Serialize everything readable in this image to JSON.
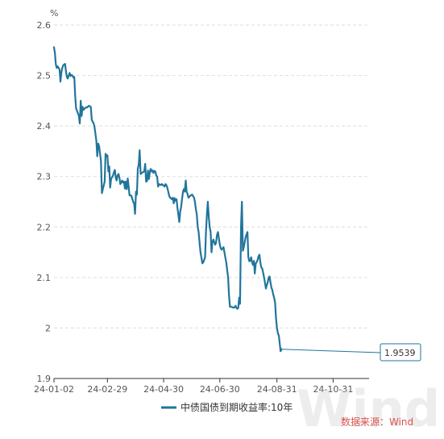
{
  "chart_data": {
    "type": "line",
    "unit_label": "%",
    "ylim": [
      1.9,
      2.6
    ],
    "yticks": [
      "2.6",
      "2.5",
      "2.4",
      "2.3",
      "2.2",
      "2.1",
      "2",
      "1.9"
    ],
    "yticks_values": [
      2.6,
      2.5,
      2.4,
      2.3,
      2.2,
      2.1,
      2.0,
      1.9
    ],
    "xticks": [
      {
        "label": "24-01-02",
        "day": 0
      },
      {
        "label": "24-02-29",
        "day": 58
      },
      {
        "label": "24-04-30",
        "day": 119
      },
      {
        "label": "24-06-30",
        "day": 180
      },
      {
        "label": "24-08-31",
        "day": 242
      },
      {
        "label": "24-10-31",
        "day": 303
      }
    ],
    "x_last_day": 342,
    "grid": "horizontal-dashed",
    "legend_position": "bottom",
    "end_label": "1.9539",
    "series": [
      {
        "name": "中债国债到期收益率:10年",
        "color": "#21759b",
        "points": [
          [
            0,
            2.556
          ],
          [
            1,
            2.545
          ],
          [
            2,
            2.522
          ],
          [
            3,
            2.515
          ],
          [
            4,
            2.518
          ],
          [
            6,
            2.512
          ],
          [
            7,
            2.488
          ],
          [
            8,
            2.505
          ],
          [
            9,
            2.515
          ],
          [
            10,
            2.52
          ],
          [
            11,
            2.522
          ],
          [
            12,
            2.523
          ],
          [
            13,
            2.508
          ],
          [
            14,
            2.497
          ],
          [
            15,
            2.494
          ],
          [
            17,
            2.505
          ],
          [
            18,
            2.499
          ],
          [
            19,
            2.501
          ],
          [
            20,
            2.5
          ],
          [
            21,
            2.496
          ],
          [
            22,
            2.497
          ],
          [
            23,
            2.46
          ],
          [
            24,
            2.435
          ],
          [
            25,
            2.43
          ],
          [
            26,
            2.425
          ],
          [
            27,
            2.42
          ],
          [
            28,
            2.405
          ],
          [
            29,
            2.45
          ],
          [
            30,
            2.42
          ],
          [
            31,
            2.438
          ],
          [
            32,
            2.432
          ],
          [
            33,
            2.434
          ],
          [
            34,
            2.436
          ],
          [
            36,
            2.437
          ],
          [
            38,
            2.44
          ],
          [
            40,
            2.438
          ],
          [
            41,
            2.412
          ],
          [
            43,
            2.405
          ],
          [
            44,
            2.398
          ],
          [
            45,
            2.385
          ],
          [
            46,
            2.37
          ],
          [
            47,
            2.34
          ],
          [
            48,
            2.365
          ],
          [
            49,
            2.36
          ],
          [
            50,
            2.345
          ],
          [
            51,
            2.33
          ],
          [
            52,
            2.267
          ],
          [
            53,
            2.275
          ],
          [
            55,
            2.29
          ],
          [
            56,
            2.345
          ],
          [
            57,
            2.34
          ],
          [
            58,
            2.342
          ],
          [
            59,
            2.31
          ],
          [
            60,
            2.32
          ],
          [
            61,
            2.278
          ],
          [
            62,
            2.296
          ],
          [
            63,
            2.298
          ],
          [
            64,
            2.302
          ],
          [
            65,
            2.308
          ],
          [
            66,
            2.313
          ],
          [
            67,
            2.298
          ],
          [
            68,
            2.292
          ],
          [
            69,
            2.302
          ],
          [
            70,
            2.305
          ],
          [
            71,
            2.298
          ],
          [
            72,
            2.285
          ],
          [
            73,
            2.288
          ],
          [
            74,
            2.292
          ],
          [
            75,
            2.288
          ],
          [
            76,
            2.29
          ],
          [
            77,
            2.276
          ],
          [
            78,
            2.29
          ],
          [
            79,
            2.275
          ],
          [
            80,
            2.296
          ],
          [
            81,
            2.281
          ],
          [
            82,
            2.263
          ],
          [
            84,
            2.262
          ],
          [
            86,
            2.25
          ],
          [
            87,
            2.246
          ],
          [
            88,
            2.226
          ],
          [
            89,
            2.27
          ],
          [
            90,
            2.264
          ],
          [
            91,
            2.315
          ],
          [
            92,
            2.324
          ],
          [
            93,
            2.352
          ],
          [
            94,
            2.305
          ],
          [
            96,
            2.308
          ],
          [
            98,
            2.31
          ],
          [
            99,
            2.325
          ],
          [
            100,
            2.29
          ],
          [
            101,
            2.291
          ],
          [
            102,
            2.312
          ],
          [
            103,
            2.295
          ],
          [
            104,
            2.308
          ],
          [
            105,
            2.315
          ],
          [
            106,
            2.31
          ],
          [
            107,
            2.312
          ],
          [
            108,
            2.307
          ],
          [
            109,
            2.311
          ],
          [
            110,
            2.31
          ],
          [
            111,
            2.302
          ],
          [
            112,
            2.3
          ],
          [
            113,
            2.28
          ],
          [
            114,
            2.285
          ],
          [
            116,
            2.283
          ],
          [
            117,
            2.285
          ],
          [
            119,
            2.282
          ],
          [
            120,
            2.28
          ],
          [
            121,
            2.285
          ],
          [
            122,
            2.283
          ],
          [
            123,
            2.278
          ],
          [
            124,
            2.27
          ],
          [
            125,
            2.262
          ],
          [
            126,
            2.258
          ],
          [
            127,
            2.257
          ],
          [
            128,
            2.255
          ],
          [
            129,
            2.258
          ],
          [
            130,
            2.247
          ],
          [
            131,
            2.257
          ],
          [
            132,
            2.252
          ],
          [
            133,
            2.255
          ],
          [
            134,
            2.238
          ],
          [
            135,
            2.225
          ],
          [
            136,
            2.21
          ],
          [
            137,
            2.23
          ],
          [
            138,
            2.24
          ],
          [
            139,
            2.255
          ],
          [
            140,
            2.27
          ],
          [
            141,
            2.275
          ],
          [
            142,
            2.27
          ],
          [
            143,
            2.292
          ],
          [
            144,
            2.27
          ],
          [
            145,
            2.265
          ],
          [
            146,
            2.258
          ],
          [
            148,
            2.262
          ],
          [
            150,
            2.264
          ],
          [
            152,
            2.258
          ],
          [
            153,
            2.25
          ],
          [
            154,
            2.235
          ],
          [
            155,
            2.225
          ],
          [
            156,
            2.2
          ],
          [
            157,
            2.19
          ],
          [
            158,
            2.17
          ],
          [
            159,
            2.15
          ],
          [
            160,
            2.14
          ],
          [
            161,
            2.128
          ],
          [
            162,
            2.13
          ],
          [
            163,
            2.135
          ],
          [
            164,
            2.14
          ],
          [
            165,
            2.19
          ],
          [
            166,
            2.225
          ],
          [
            167,
            2.25
          ],
          [
            168,
            2.22
          ],
          [
            169,
            2.2
          ],
          [
            170,
            2.19
          ],
          [
            171,
            2.15
          ],
          [
            172,
            2.17
          ],
          [
            173,
            2.175
          ],
          [
            174,
            2.17
          ],
          [
            175,
            2.165
          ],
          [
            176,
            2.17
          ],
          [
            177,
            2.185
          ],
          [
            178,
            2.19
          ],
          [
            180,
            2.165
          ],
          [
            181,
            2.158
          ],
          [
            182,
            2.155
          ],
          [
            184,
            2.16
          ],
          [
            185,
            2.15
          ],
          [
            186,
            2.14
          ],
          [
            187,
            2.13
          ],
          [
            188,
            2.115
          ],
          [
            189,
            2.1
          ],
          [
            190,
            2.065
          ],
          [
            191,
            2.042
          ],
          [
            192,
            2.042
          ],
          [
            194,
            2.041
          ],
          [
            195,
            2.04
          ],
          [
            196,
            2.041
          ],
          [
            197,
            2.044
          ],
          [
            198,
            2.04
          ],
          [
            199,
            2.038
          ],
          [
            200,
            2.04
          ],
          [
            201,
            2.06
          ],
          [
            202,
            2.048
          ],
          [
            203,
            2.2
          ],
          [
            204,
            2.25
          ],
          [
            205,
            2.153
          ],
          [
            206,
            2.16
          ],
          [
            207,
            2.17
          ],
          [
            208,
            2.18
          ],
          [
            209,
            2.185
          ],
          [
            210,
            2.19
          ],
          [
            211,
            2.14
          ],
          [
            212,
            2.132
          ],
          [
            213,
            2.133
          ],
          [
            214,
            2.14
          ],
          [
            215,
            2.13
          ],
          [
            216,
            2.125
          ],
          [
            217,
            2.133
          ],
          [
            218,
            2.108
          ],
          [
            219,
            2.128
          ],
          [
            220,
            2.13
          ],
          [
            221,
            2.135
          ],
          [
            222,
            2.142
          ],
          [
            223,
            2.145
          ],
          [
            224,
            2.13
          ],
          [
            225,
            2.12
          ],
          [
            226,
            2.118
          ],
          [
            227,
            2.11
          ],
          [
            228,
            2.1
          ],
          [
            229,
            2.09
          ],
          [
            230,
            2.078
          ],
          [
            231,
            2.085
          ],
          [
            232,
            2.09
          ],
          [
            233,
            2.1
          ],
          [
            234,
            2.102
          ],
          [
            235,
            2.09
          ],
          [
            236,
            2.08
          ],
          [
            237,
            2.075
          ],
          [
            238,
            2.066
          ],
          [
            239,
            2.06
          ],
          [
            240,
            2.05
          ],
          [
            241,
            2.02
          ],
          [
            242,
            2.0
          ],
          [
            243,
            1.99
          ],
          [
            244,
            1.985
          ],
          [
            245,
            1.97
          ],
          [
            246,
            1.954
          ],
          [
            247,
            1.958
          ]
        ]
      }
    ],
    "watermark": "Wind",
    "source": "数据来源：Wind"
  }
}
